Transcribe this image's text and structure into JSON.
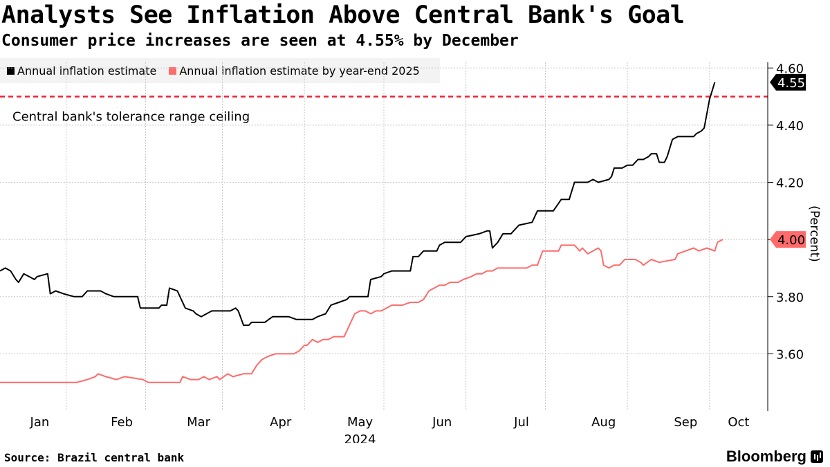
{
  "chart_data": {
    "type": "line",
    "title": "Analysts See Inflation Above Central Bank's Goal",
    "subtitle": "Consumer price increases are seen at 4.55% by December",
    "ylabel": "(Percent)",
    "xlabel_year": "2024",
    "ylim": [
      3.4,
      4.62
    ],
    "y_ticks": [
      {
        "value": 3.6,
        "label": "3.60"
      },
      {
        "value": 3.8,
        "label": "3.80"
      },
      {
        "value": 4.0,
        "label": "4.00"
      },
      {
        "value": 4.2,
        "label": "4.20"
      },
      {
        "value": 4.4,
        "label": "4.40"
      },
      {
        "value": 4.6,
        "label": "4.60"
      }
    ],
    "x_month_labels": [
      {
        "day": 15,
        "label": "Jan"
      },
      {
        "day": 46,
        "label": "Feb"
      },
      {
        "day": 75,
        "label": "Mar"
      },
      {
        "day": 106,
        "label": "Apr"
      },
      {
        "day": 136,
        "label": "May"
      },
      {
        "day": 167,
        "label": "Jun"
      },
      {
        "day": 197,
        "label": "Jul"
      },
      {
        "day": 228,
        "label": "Aug"
      },
      {
        "day": 259,
        "label": "Sep"
      },
      {
        "day": 279,
        "label": "Oct"
      }
    ],
    "x_range_days": [
      0,
      290
    ],
    "x_grid_days": [
      25,
      55,
      84,
      115,
      145,
      176,
      206,
      237,
      268
    ],
    "reference_line": {
      "value": 4.5,
      "label": "Central bank's tolerance range ceiling",
      "color": "#ee2233"
    },
    "series": [
      {
        "name": "Annual inflation estimate",
        "color": "#000000",
        "end_label": "4.55",
        "points": [
          [
            0,
            3.89
          ],
          [
            2,
            3.9
          ],
          [
            4,
            3.89
          ],
          [
            6,
            3.86
          ],
          [
            7,
            3.85
          ],
          [
            9,
            3.88
          ],
          [
            11,
            3.87
          ],
          [
            13,
            3.86
          ],
          [
            14,
            3.87
          ],
          [
            18,
            3.88
          ],
          [
            19,
            3.81
          ],
          [
            21,
            3.82
          ],
          [
            24,
            3.81
          ],
          [
            28,
            3.8
          ],
          [
            31,
            3.8
          ],
          [
            33,
            3.82
          ],
          [
            38,
            3.82
          ],
          [
            40,
            3.81
          ],
          [
            43,
            3.8
          ],
          [
            52,
            3.8
          ],
          [
            53,
            3.76
          ],
          [
            60,
            3.76
          ],
          [
            61,
            3.77
          ],
          [
            63,
            3.77
          ],
          [
            64,
            3.83
          ],
          [
            67,
            3.82
          ],
          [
            70,
            3.76
          ],
          [
            73,
            3.75
          ],
          [
            74,
            3.74
          ],
          [
            76,
            3.73
          ],
          [
            78,
            3.74
          ],
          [
            80,
            3.75
          ],
          [
            87,
            3.75
          ],
          [
            89,
            3.76
          ],
          [
            90,
            3.75
          ],
          [
            92,
            3.7
          ],
          [
            94,
            3.7
          ],
          [
            95,
            3.71
          ],
          [
            100,
            3.71
          ],
          [
            103,
            3.73
          ],
          [
            109,
            3.73
          ],
          [
            112,
            3.72
          ],
          [
            115,
            3.72
          ],
          [
            118,
            3.72
          ],
          [
            120,
            3.73
          ],
          [
            123,
            3.74
          ],
          [
            125,
            3.77
          ],
          [
            128,
            3.78
          ],
          [
            131,
            3.79
          ],
          [
            132,
            3.8
          ],
          [
            139,
            3.8
          ],
          [
            140,
            3.86
          ],
          [
            144,
            3.87
          ],
          [
            145,
            3.88
          ],
          [
            148,
            3.89
          ],
          [
            155,
            3.89
          ],
          [
            156,
            3.94
          ],
          [
            158,
            3.94
          ],
          [
            160,
            3.96
          ],
          [
            165,
            3.96
          ],
          [
            166,
            3.98
          ],
          [
            168,
            3.99
          ],
          [
            174,
            3.99
          ],
          [
            176,
            4.01
          ],
          [
            181,
            4.02
          ],
          [
            184,
            4.03
          ],
          [
            185,
            4.03
          ],
          [
            186,
            3.97
          ],
          [
            188,
            3.99
          ],
          [
            190,
            4.02
          ],
          [
            193,
            4.02
          ],
          [
            196,
            4.05
          ],
          [
            201,
            4.06
          ],
          [
            203,
            4.1
          ],
          [
            209,
            4.1
          ],
          [
            212,
            4.14
          ],
          [
            215,
            4.14
          ],
          [
            217,
            4.2
          ],
          [
            222,
            4.2
          ],
          [
            224,
            4.21
          ],
          [
            226,
            4.2
          ],
          [
            230,
            4.21
          ],
          [
            231,
            4.22
          ],
          [
            232,
            4.25
          ],
          [
            234,
            4.25
          ],
          [
            235,
            4.25
          ],
          [
            237,
            4.26
          ],
          [
            239,
            4.26
          ],
          [
            241,
            4.28
          ],
          [
            243,
            4.28
          ],
          [
            245,
            4.29
          ],
          [
            246,
            4.3
          ],
          [
            248,
            4.3
          ],
          [
            249,
            4.27
          ],
          [
            251,
            4.27
          ],
          [
            252,
            4.29
          ],
          [
            254,
            4.35
          ],
          [
            256,
            4.36
          ],
          [
            262,
            4.36
          ],
          [
            263,
            4.37
          ],
          [
            265,
            4.38
          ],
          [
            266,
            4.39
          ],
          [
            268,
            4.49
          ],
          [
            270,
            4.55
          ]
        ]
      },
      {
        "name": "Annual inflation estimate by year-end 2025",
        "color": "#ff6a6a",
        "end_label": "4.00",
        "points": [
          [
            0,
            3.5
          ],
          [
            28,
            3.5
          ],
          [
            29,
            3.5
          ],
          [
            33,
            3.51
          ],
          [
            36,
            3.52
          ],
          [
            37,
            3.53
          ],
          [
            40,
            3.52
          ],
          [
            44,
            3.51
          ],
          [
            47,
            3.52
          ],
          [
            54,
            3.51
          ],
          [
            56,
            3.5
          ],
          [
            68,
            3.5
          ],
          [
            69,
            3.52
          ],
          [
            72,
            3.51
          ],
          [
            75,
            3.51
          ],
          [
            77,
            3.52
          ],
          [
            79,
            3.51
          ],
          [
            82,
            3.52
          ],
          [
            83,
            3.51
          ],
          [
            86,
            3.53
          ],
          [
            88,
            3.52
          ],
          [
            92,
            3.53
          ],
          [
            95,
            3.53
          ],
          [
            97,
            3.56
          ],
          [
            99,
            3.58
          ],
          [
            101,
            3.59
          ],
          [
            104,
            3.6
          ],
          [
            111,
            3.6
          ],
          [
            113,
            3.61
          ],
          [
            115,
            3.63
          ],
          [
            116,
            3.63
          ],
          [
            118,
            3.65
          ],
          [
            120,
            3.64
          ],
          [
            122,
            3.65
          ],
          [
            124,
            3.65
          ],
          [
            126,
            3.66
          ],
          [
            128,
            3.66
          ],
          [
            130,
            3.66
          ],
          [
            132,
            3.7
          ],
          [
            134,
            3.74
          ],
          [
            136,
            3.75
          ],
          [
            138,
            3.75
          ],
          [
            140,
            3.74
          ],
          [
            142,
            3.75
          ],
          [
            144,
            3.75
          ],
          [
            146,
            3.76
          ],
          [
            148,
            3.77
          ],
          [
            150,
            3.77
          ],
          [
            152,
            3.77
          ],
          [
            155,
            3.78
          ],
          [
            158,
            3.78
          ],
          [
            160,
            3.79
          ],
          [
            162,
            3.82
          ],
          [
            164,
            3.83
          ],
          [
            166,
            3.84
          ],
          [
            168,
            3.84
          ],
          [
            170,
            3.85
          ],
          [
            173,
            3.85
          ],
          [
            175,
            3.86
          ],
          [
            178,
            3.87
          ],
          [
            180,
            3.88
          ],
          [
            182,
            3.88
          ],
          [
            184,
            3.89
          ],
          [
            186,
            3.89
          ],
          [
            188,
            3.9
          ],
          [
            190,
            3.9
          ],
          [
            193,
            3.9
          ],
          [
            196,
            3.9
          ],
          [
            199,
            3.9
          ],
          [
            201,
            3.91
          ],
          [
            203,
            3.91
          ],
          [
            205,
            3.96
          ],
          [
            211,
            3.96
          ],
          [
            212,
            3.98
          ],
          [
            217,
            3.98
          ],
          [
            219,
            3.96
          ],
          [
            220,
            3.97
          ],
          [
            222,
            3.95
          ],
          [
            224,
            3.96
          ],
          [
            226,
            3.97
          ],
          [
            227,
            3.96
          ],
          [
            228,
            3.91
          ],
          [
            230,
            3.9
          ],
          [
            232,
            3.91
          ],
          [
            234,
            3.91
          ],
          [
            236,
            3.93
          ],
          [
            240,
            3.93
          ],
          [
            242,
            3.92
          ],
          [
            243,
            3.91
          ],
          [
            246,
            3.93
          ],
          [
            249,
            3.92
          ],
          [
            255,
            3.93
          ],
          [
            256,
            3.95
          ],
          [
            259,
            3.96
          ],
          [
            262,
            3.97
          ],
          [
            264,
            3.96
          ],
          [
            267,
            3.97
          ],
          [
            270,
            3.96
          ],
          [
            271,
            3.99
          ],
          [
            273,
            4.0
          ]
        ]
      }
    ]
  },
  "legend": [
    {
      "label": "Annual inflation estimate",
      "color": "#000000"
    },
    {
      "label": "Annual inflation estimate by year-end 2025",
      "color": "#ff6a6a"
    }
  ],
  "footer": {
    "source": "Source: Brazil central bank",
    "brand": "Bloomberg"
  }
}
